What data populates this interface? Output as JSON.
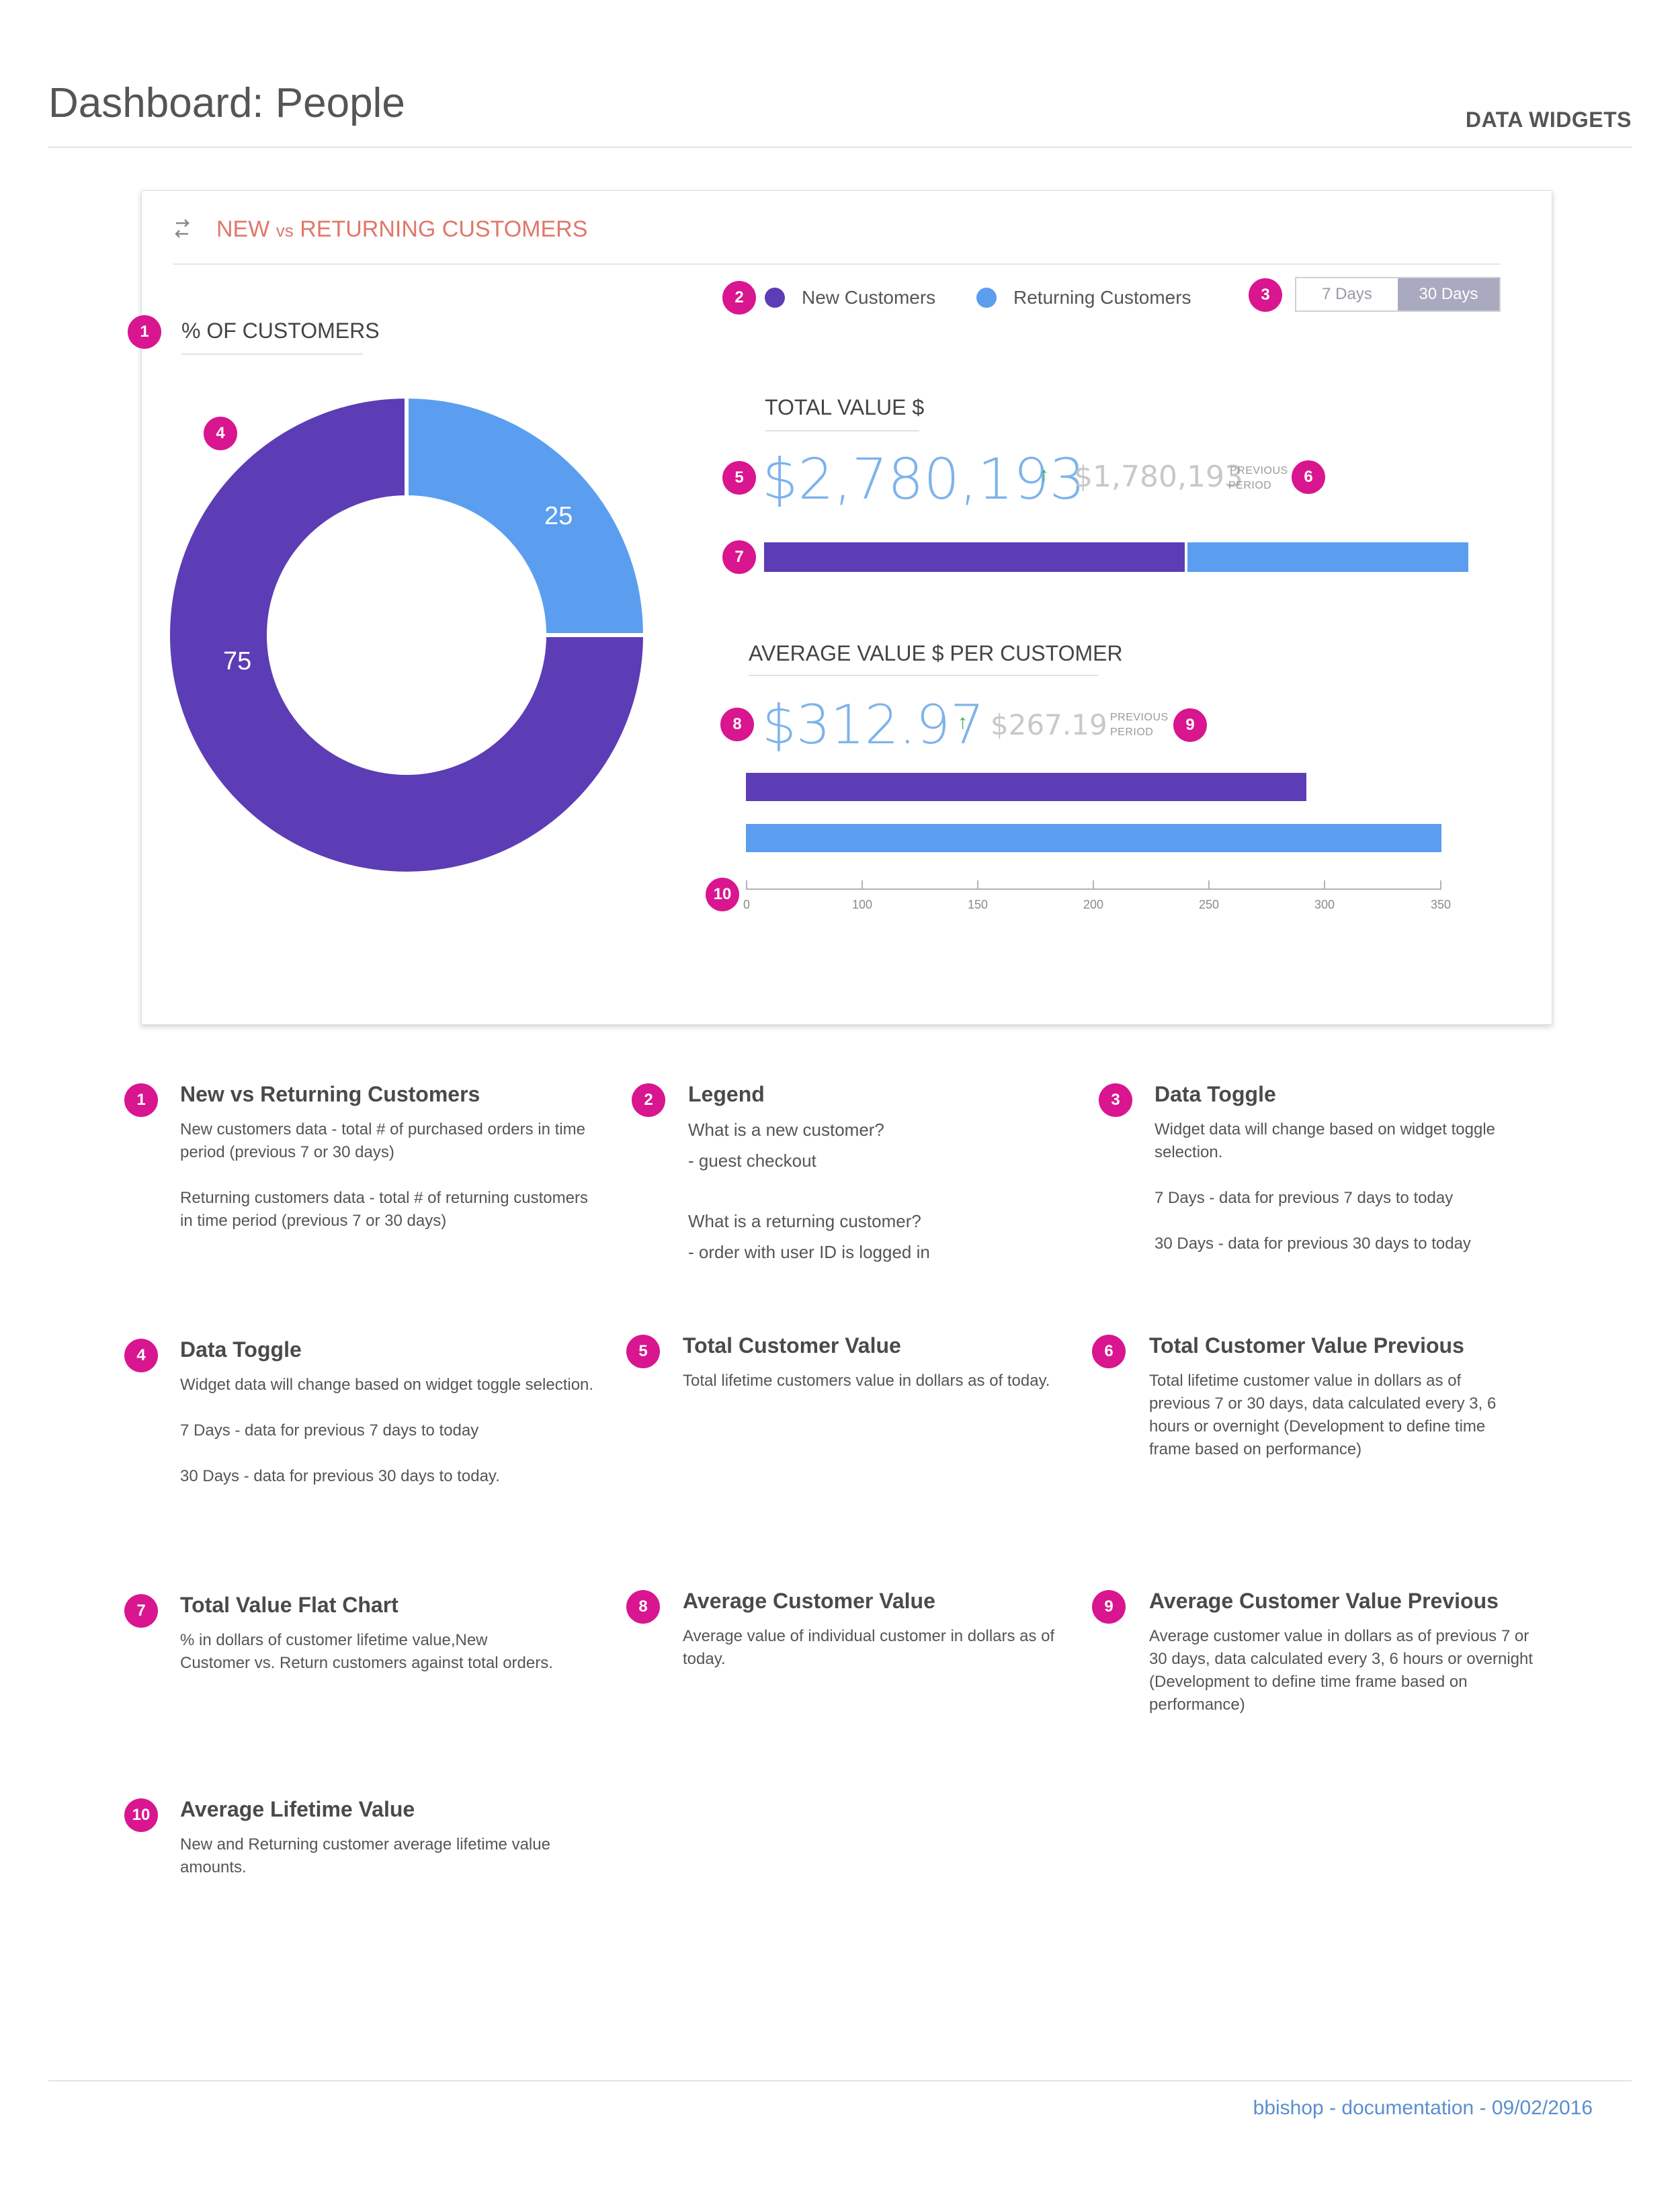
{
  "header": {
    "title": "Dashboard: People",
    "tag": "DATA WIDGETS"
  },
  "widget": {
    "title_prefix": "NEW ",
    "title_vs": "vs",
    "title_suffix": " RETURNING CUSTOMERS",
    "icon": "swap-arrows-icon",
    "percent_label": "% OF CUSTOMERS",
    "legend": [
      {
        "label": "New Customers",
        "color": "#5c3db5"
      },
      {
        "label": "Returning Customers",
        "color": "#5b9ef0"
      }
    ],
    "toggle": {
      "options": [
        "7 Days",
        "30 Days"
      ],
      "selected": "30 Days"
    },
    "total_value": {
      "label": "TOTAL VALUE $",
      "current": "$2,780,193",
      "previous": "$1,780,193",
      "previous_label_1": "PREVIOUS",
      "previous_label_2": "PERIOD",
      "trend": "up"
    },
    "average_value": {
      "label": "AVERAGE VALUE $ PER CUSTOMER",
      "current": "$312.97",
      "previous": "$267.19",
      "previous_label_1": "PREVIOUS",
      "previous_label_2": "PERIOD",
      "trend": "up"
    },
    "markers": [
      "1",
      "2",
      "3",
      "4",
      "5",
      "6",
      "7",
      "8",
      "9",
      "10"
    ]
  },
  "chart_data": [
    {
      "type": "pie",
      "title": "% OF CUSTOMERS",
      "categories": [
        "New Customers",
        "Returning Customers"
      ],
      "values": [
        75,
        25
      ],
      "labels": [
        "75",
        "25"
      ],
      "colors": [
        "#5c3db5",
        "#5b9ef0"
      ],
      "style": "donut"
    },
    {
      "type": "bar",
      "title": "TOTAL VALUE $",
      "orientation": "horizontal-stacked",
      "categories": [
        "New Customers",
        "Returning Customers"
      ],
      "values": [
        60,
        40
      ],
      "colors": [
        "#5c3db5",
        "#5b9ef0"
      ]
    },
    {
      "type": "bar",
      "title": "AVERAGE VALUE $ PER CUSTOMER",
      "orientation": "horizontal",
      "categories": [
        "New Customers",
        "Returning Customers"
      ],
      "values": [
        282,
        352
      ],
      "colors": [
        "#5c3db5",
        "#5b9ef0"
      ],
      "xlim": [
        0,
        350
      ],
      "ticks": [
        0,
        100,
        150,
        200,
        250,
        300,
        350
      ],
      "tick_labels": [
        "0",
        "100",
        "150",
        "200",
        "250",
        "300",
        "350"
      ]
    }
  ],
  "notes": [
    {
      "num": "1",
      "title": "New vs Returning Customers",
      "paragraphs": [
        "New customers data - total # of purchased orders in time period (previous 7 or 30 days)",
        "Returning customers data -   total # of returning customers in time period (previous 7 or 30 days)"
      ]
    },
    {
      "num": "2",
      "title": "Legend",
      "lines": [
        "What is a new customer?",
        "- guest checkout",
        "What is a returning customer?",
        "- order with user ID is logged in"
      ]
    },
    {
      "num": "3",
      "title": "Data Toggle",
      "paragraphs": [
        "Widget data will change based on widget toggle selection.",
        "7 Days - data for previous 7 days to today",
        "30 Days - data for previous 30 days to today"
      ]
    },
    {
      "num": "4",
      "title": "Data Toggle",
      "paragraphs": [
        "Widget data will change based on widget toggle selection.",
        "7 Days - data for previous 7 days to today",
        "30 Days - data for previous 30 days to today."
      ]
    },
    {
      "num": "5",
      "title": "Total Customer Value",
      "paragraphs": [
        "Total lifetime customers value in dollars as of today."
      ]
    },
    {
      "num": "6",
      "title": "Total Customer Value Previous",
      "paragraphs": [
        "Total lifetime customer value in dollars as of previous 7 or 30 days, data  calculated every 3, 6 hours or overnight (Development to define time frame based on performance)"
      ]
    },
    {
      "num": "7",
      "title": "Total Value Flat Chart",
      "paragraphs": [
        "% in dollars of customer lifetime value,New Customer vs. Return customers against total orders."
      ]
    },
    {
      "num": "8",
      "title": "Average Customer Value",
      "paragraphs": [
        "Average value of individual customer in dollars as of today."
      ]
    },
    {
      "num": "9",
      "title": "Average Customer Value Previous",
      "paragraphs": [
        "Average customer value in dollars as of previous 7 or 30 days, data  calculated every 3, 6 hours or overnight (Development to define time frame based on performance)"
      ]
    },
    {
      "num": "10",
      "title": "Average Lifetime Value",
      "paragraphs": [
        "New and Returning customer average lifetime value amounts."
      ]
    }
  ],
  "footer": {
    "credit": "bbishop - documentation - 09/02/2016"
  }
}
